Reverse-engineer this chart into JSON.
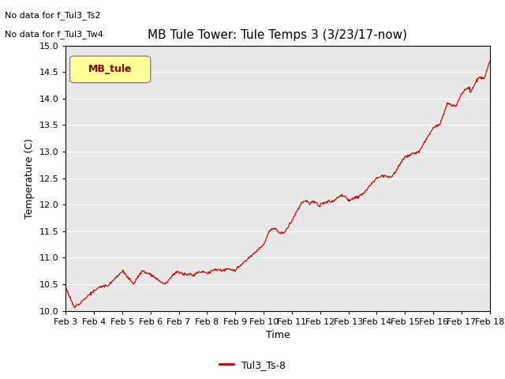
{
  "title": "MB Tule Tower: Tule Temps 3 (3/23/17-now)",
  "xlabel": "Time",
  "ylabel": "Temperature (C)",
  "no_data_text": [
    "No data for f_Tul3_Ts2",
    "No data for f_Tul3_Tw4"
  ],
  "legend_box_label": "MB_tule",
  "legend_box_color": "#ffff99",
  "legend_box_edge": "#aaaaaa",
  "legend_label": "Tul3_Ts-8",
  "legend_line_color": "#cc0000",
  "line_color": "#cc0000",
  "bg_color": "#e8e8e8",
  "ylim": [
    10.0,
    15.0
  ],
  "yticks": [
    10.0,
    10.5,
    11.0,
    11.5,
    12.0,
    12.5,
    13.0,
    13.5,
    14.0,
    14.5,
    15.0
  ],
  "xtick_labels": [
    "Feb 3",
    "Feb 4",
    "Feb 5",
    "Feb 6",
    "Feb 7",
    "Feb 8",
    "Feb 9",
    "Feb 10",
    "Feb 11",
    "Feb 12",
    "Feb 13",
    "Feb 14",
    "Feb 15",
    "Feb 16",
    "Feb 17",
    "Feb 18"
  ]
}
